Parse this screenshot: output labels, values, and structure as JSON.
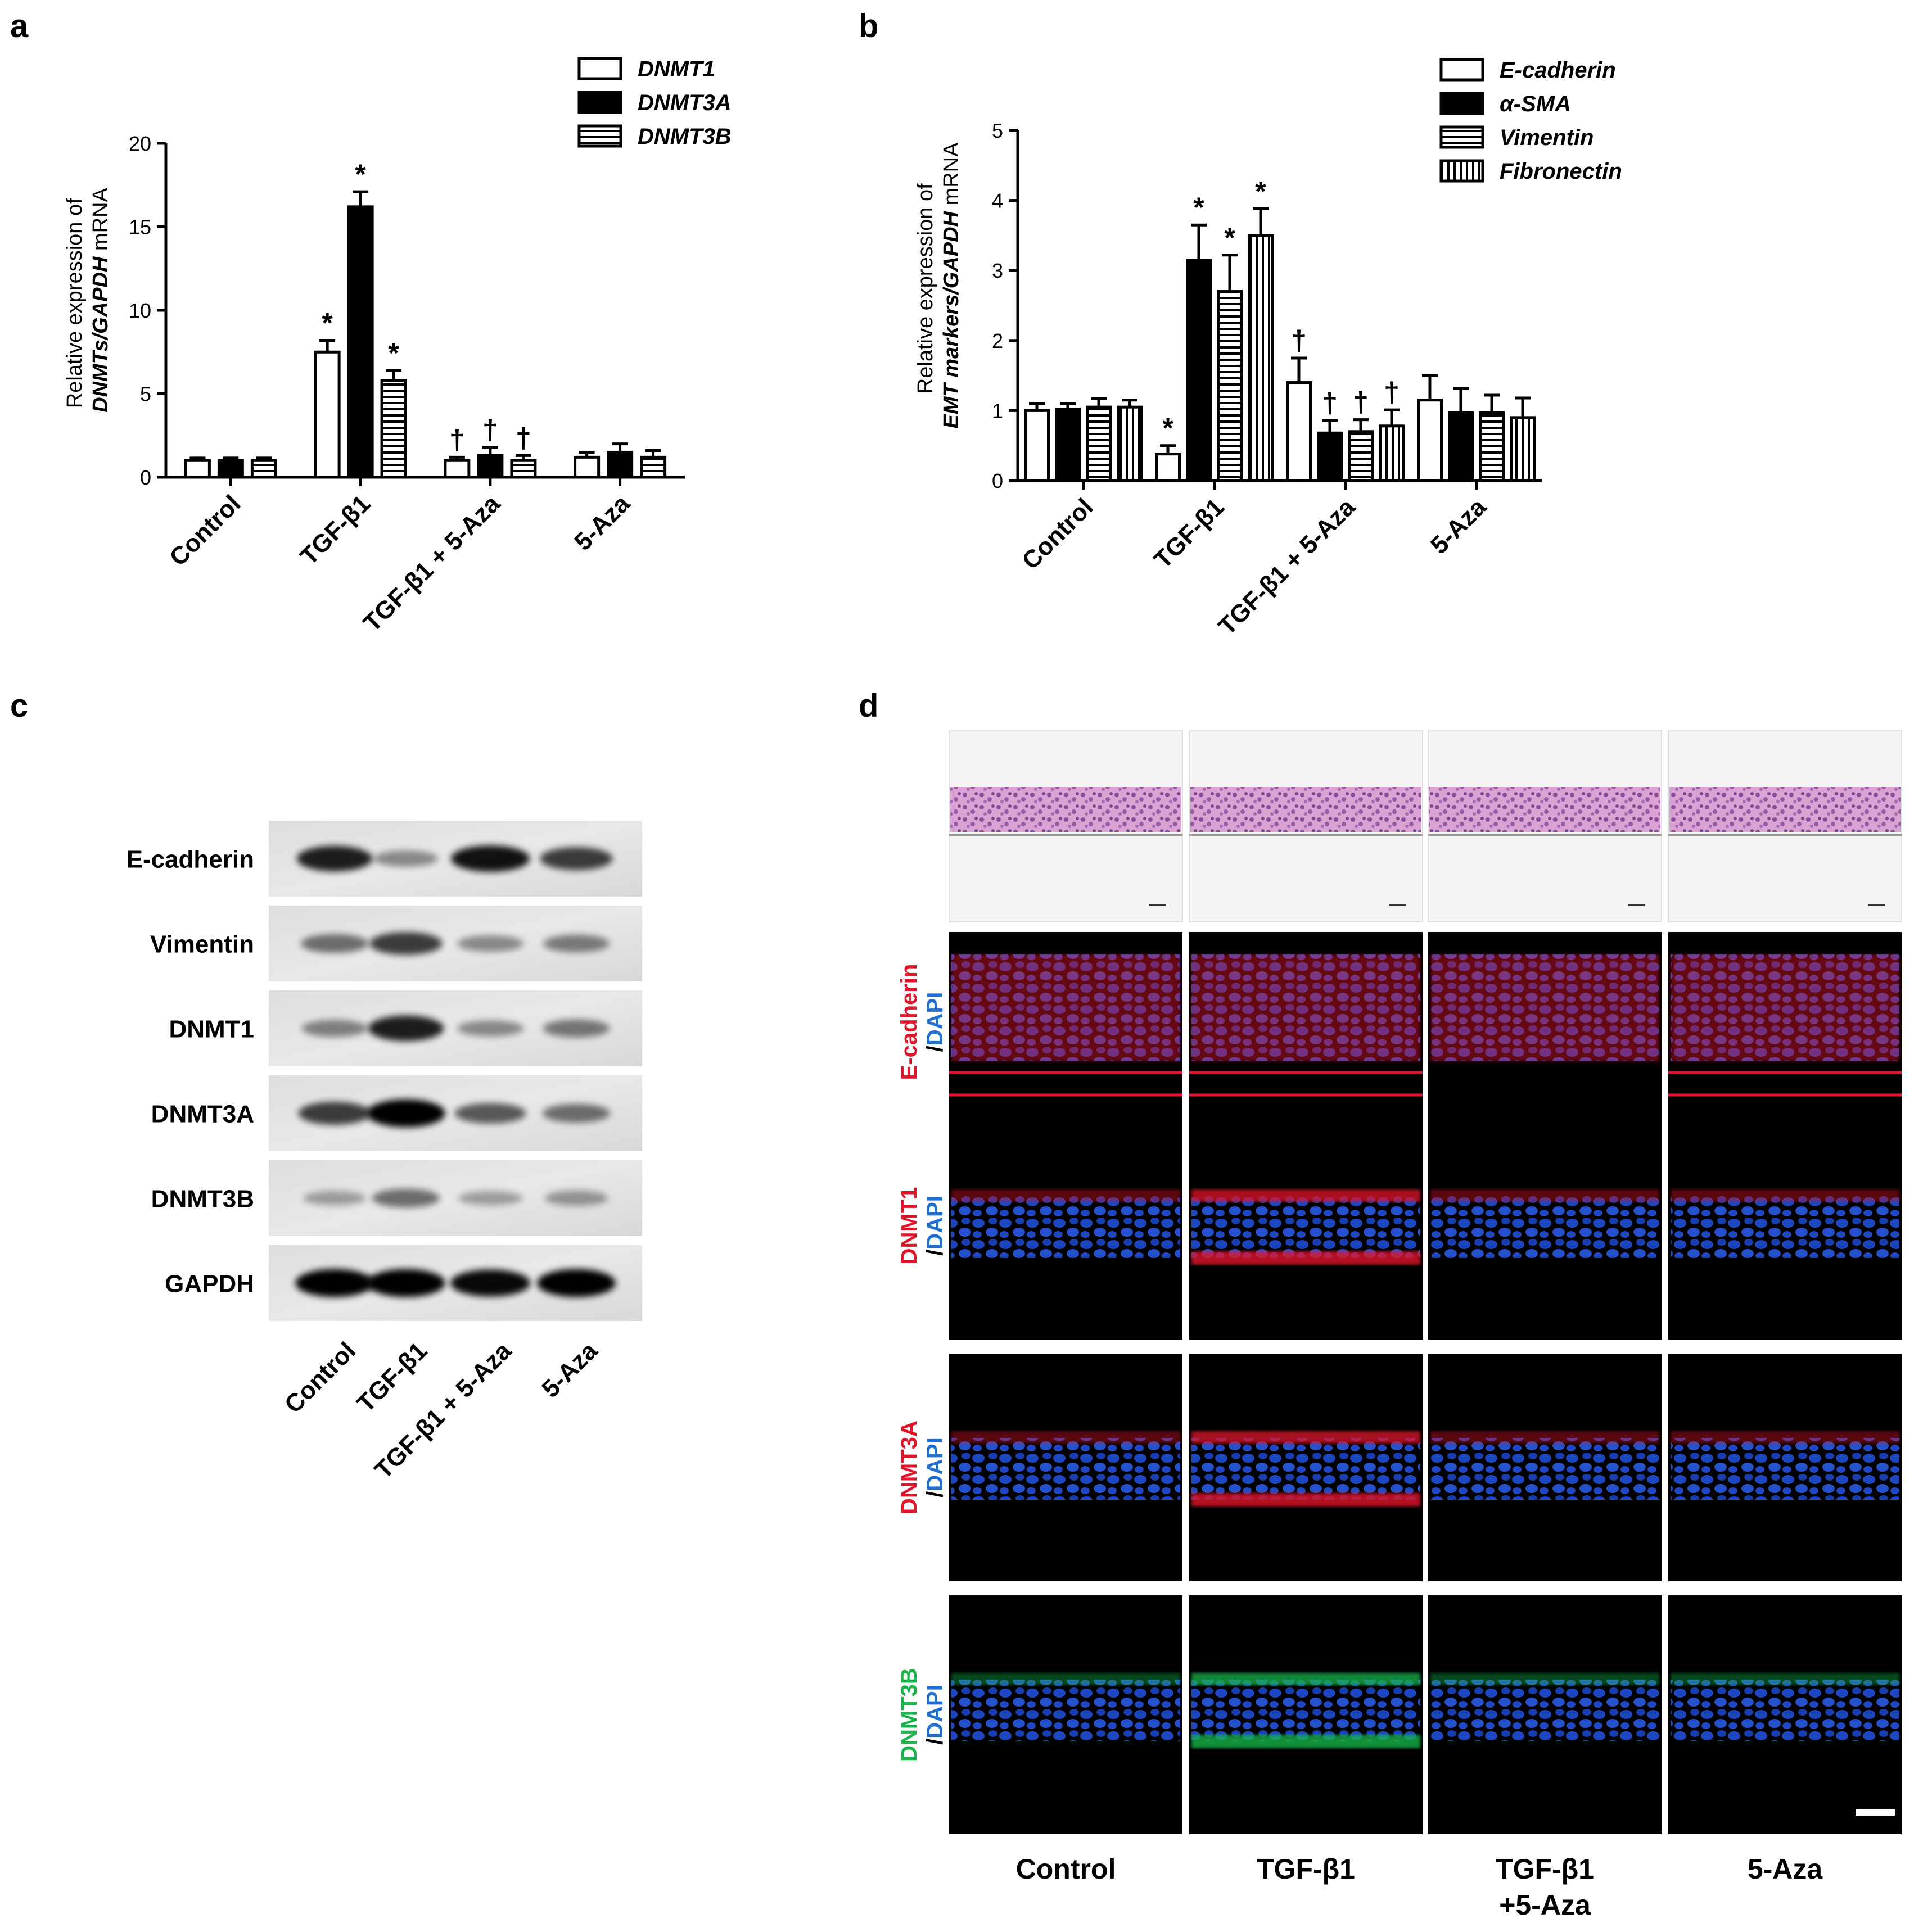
{
  "panels": {
    "a": "a",
    "b": "b",
    "c": "c",
    "d": "d"
  },
  "colors": {
    "dapi": "#1f6fd1",
    "red_stain": "#e0152a",
    "green_stain": "#19b34a",
    "he": "#c779b8"
  },
  "chart_data": [
    {
      "type": "bar",
      "panel": "a",
      "ylabel_line1": "Relative expression of",
      "ylabel_line2_italic": "DNMTs/GAPDH",
      "ylabel_line2_rest": " mRNA",
      "xlabel": "",
      "ylim": [
        0,
        20
      ],
      "yticks": [
        0,
        5,
        10,
        15,
        20
      ],
      "categories": [
        "Control",
        "TGF-β1",
        "TGF-β1 + 5-Aza",
        "5-Aza"
      ],
      "series": [
        {
          "name": "DNMT1",
          "pattern": "open",
          "values": [
            1.0,
            7.5,
            1.0,
            1.2
          ],
          "errors": [
            0.15,
            0.7,
            0.2,
            0.3
          ],
          "marks": [
            "",
            "*",
            "†",
            ""
          ]
        },
        {
          "name": "DNMT3A",
          "pattern": "solid",
          "values": [
            1.0,
            16.2,
            1.3,
            1.5
          ],
          "errors": [
            0.15,
            0.9,
            0.5,
            0.5
          ],
          "marks": [
            "",
            "*",
            "†",
            ""
          ]
        },
        {
          "name": "DNMT3B",
          "pattern": "hstripe",
          "values": [
            1.0,
            5.8,
            1.0,
            1.2
          ],
          "errors": [
            0.15,
            0.6,
            0.3,
            0.4
          ],
          "marks": [
            "",
            "*",
            "†",
            ""
          ]
        }
      ],
      "legend": "top-right"
    },
    {
      "type": "bar",
      "panel": "b",
      "ylabel_line1": "Relative expression of",
      "ylabel_line2_italic": "EMT markers/GAPDH",
      "ylabel_line2_rest": " mRNA",
      "xlabel": "",
      "ylim": [
        0,
        5
      ],
      "yticks": [
        0,
        1,
        2,
        3,
        4,
        5
      ],
      "categories": [
        "Control",
        "TGF-β1",
        "TGF-β1 + 5-Aza",
        "5-Aza"
      ],
      "series": [
        {
          "name": "E-cadherin",
          "pattern": "open",
          "values": [
            1.0,
            0.38,
            1.4,
            1.15
          ],
          "errors": [
            0.1,
            0.12,
            0.35,
            0.35
          ],
          "marks": [
            "",
            "*",
            "†",
            ""
          ]
        },
        {
          "name": "α-SMA",
          "pattern": "solid",
          "values": [
            1.02,
            3.15,
            0.68,
            0.97
          ],
          "errors": [
            0.08,
            0.5,
            0.18,
            0.35
          ],
          "marks": [
            "",
            "*",
            "†",
            ""
          ]
        },
        {
          "name": "Vimentin",
          "pattern": "hstripe",
          "values": [
            1.05,
            2.7,
            0.7,
            0.97
          ],
          "errors": [
            0.12,
            0.52,
            0.17,
            0.25
          ],
          "marks": [
            "",
            "*",
            "†",
            ""
          ]
        },
        {
          "name": "Fibronectin",
          "pattern": "vstripe",
          "values": [
            1.05,
            3.5,
            0.78,
            0.9
          ],
          "errors": [
            0.1,
            0.38,
            0.23,
            0.28
          ],
          "marks": [
            "",
            "*",
            "†",
            ""
          ]
        }
      ],
      "legend": "top-right"
    }
  ],
  "western_blot": {
    "proteins": [
      "E-cadherin",
      "Vimentin",
      "DNMT1",
      "DNMT3A",
      "DNMT3B",
      "GAPDH"
    ],
    "lanes": [
      "Control",
      "TGF-β1",
      "TGF-β1 + 5-Aza",
      "5-Aza"
    ],
    "band_intensity": [
      [
        0.85,
        0.3,
        0.9,
        0.7
      ],
      [
        0.45,
        0.7,
        0.3,
        0.38
      ],
      [
        0.35,
        0.85,
        0.3,
        0.4
      ],
      [
        0.7,
        1.0,
        0.55,
        0.45
      ],
      [
        0.2,
        0.45,
        0.2,
        0.25
      ],
      [
        1.0,
        1.0,
        0.95,
        1.0
      ]
    ]
  },
  "histology": {
    "columns": [
      "Control",
      "TGF-β1",
      "TGF-β1",
      "5-Aza"
    ],
    "column3_line2": "+5-Aza",
    "rows": [
      {
        "stain": "E-cadherin",
        "counter": "/DAPI",
        "stain_color": "red"
      },
      {
        "stain": "DNMT1",
        "counter": "/DAPI",
        "stain_color": "red"
      },
      {
        "stain": "DNMT3A",
        "counter": "/DAPI",
        "stain_color": "red"
      },
      {
        "stain": "DNMT3B",
        "counter": "/DAPI",
        "stain_color": "green"
      }
    ]
  }
}
